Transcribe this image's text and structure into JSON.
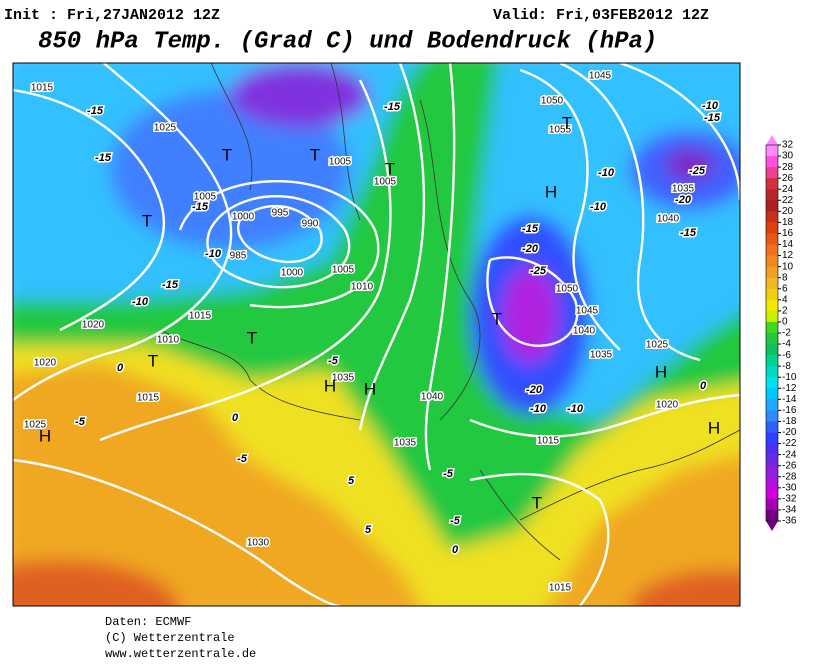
{
  "header": {
    "init": "Init : Fri,27JAN2012 12Z",
    "valid": "Valid: Fri,03FEB2012 12Z",
    "title": "850 hPa Temp. (Grad C) und Bodendruck (hPa)"
  },
  "colorbar": {
    "ticks": [
      32,
      30,
      28,
      26,
      24,
      22,
      20,
      18,
      16,
      14,
      12,
      10,
      8,
      6,
      4,
      2,
      0,
      -2,
      -4,
      -6,
      -8,
      -10,
      -12,
      -14,
      -16,
      -18,
      -20,
      -22,
      -24,
      -26,
      -28,
      -30,
      -32,
      -34,
      -36
    ],
    "colors": [
      "#ff88ff",
      "#ff50e0",
      "#f04090",
      "#d03040",
      "#b82828",
      "#a82020",
      "#c83018",
      "#e04010",
      "#e85818",
      "#f07020",
      "#f08820",
      "#f0a020",
      "#f0b820",
      "#f0d010",
      "#f0e800",
      "#c8f000",
      "#40d820",
      "#20c840",
      "#10c060",
      "#00d090",
      "#00d8c0",
      "#00e0f0",
      "#00c8ff",
      "#20a8ff",
      "#3088ff",
      "#3060ff",
      "#3040ff",
      "#5030f0",
      "#7028e0",
      "#9020e0",
      "#b010e0",
      "#d000e0",
      "#a000b0",
      "#700080"
    ]
  },
  "map": {
    "pressure_labels": [
      "1015",
      "1025",
      "1005",
      "1000",
      "995",
      "990",
      "985",
      "1000",
      "1005",
      "1010",
      "1015",
      "1020",
      "1010",
      "1020",
      "1015",
      "1035",
      "1025",
      "1030",
      "1035",
      "1040",
      "1005",
      "1005",
      "1045",
      "1050",
      "1055",
      "1035",
      "1040",
      "1050",
      "1045",
      "1040",
      "1035",
      "1025",
      "1020",
      "1015",
      "1015"
    ],
    "temperature_labels": [
      "-15",
      "-15",
      "-15",
      "-10",
      "-15",
      "-10",
      "0",
      "-5",
      "0",
      "-5",
      "-5",
      "5",
      "5",
      "-5",
      "-5",
      "-15",
      "-10",
      "-10",
      "-10",
      "-15",
      "-25",
      "-20",
      "-15",
      "-15",
      "-20",
      "-25",
      "-20",
      "-10",
      "-10",
      "0",
      "0"
    ],
    "centers": [
      "T",
      "T",
      "T",
      "T",
      "T",
      "H",
      "H",
      "T",
      "H",
      "H",
      "T",
      "T",
      "H",
      "H",
      "T"
    ]
  },
  "footer": [
    "Daten: ECMWF",
    "(C) Wetterzentrale",
    "www.wetterzentrale.de"
  ]
}
